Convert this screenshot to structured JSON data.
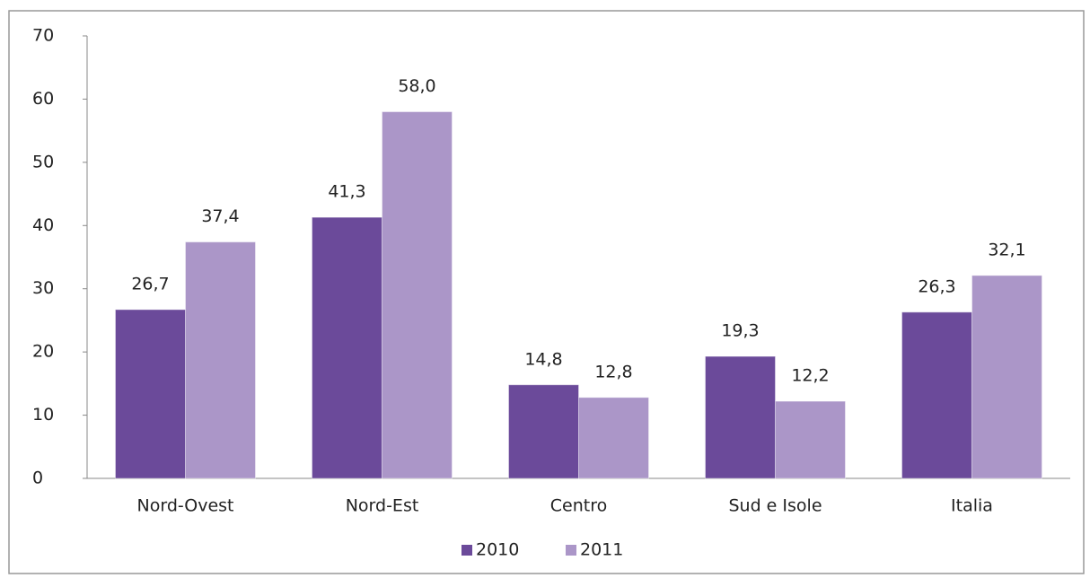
{
  "chart_data": {
    "type": "bar",
    "categories": [
      "Nord-Ovest",
      "Nord-Est",
      "Centro",
      "Sud e Isole",
      "Italia"
    ],
    "series": [
      {
        "name": "2010",
        "color": "#6b4a9a",
        "values": [
          26.7,
          41.3,
          14.8,
          19.3,
          26.3
        ],
        "value_labels": [
          "26,7",
          "41,3",
          "14,8",
          "19,3",
          "26,3"
        ]
      },
      {
        "name": "2011",
        "color": "#ab96c8",
        "values": [
          37.4,
          58.0,
          12.8,
          12.2,
          32.1
        ],
        "value_labels": [
          "37,4",
          "58,0",
          "12,8",
          "12,2",
          "32,1"
        ]
      }
    ],
    "ylim": [
      0,
      70
    ],
    "yticks": [
      0,
      10,
      20,
      30,
      40,
      50,
      60,
      70
    ],
    "grid": false,
    "legend": "bottom"
  }
}
